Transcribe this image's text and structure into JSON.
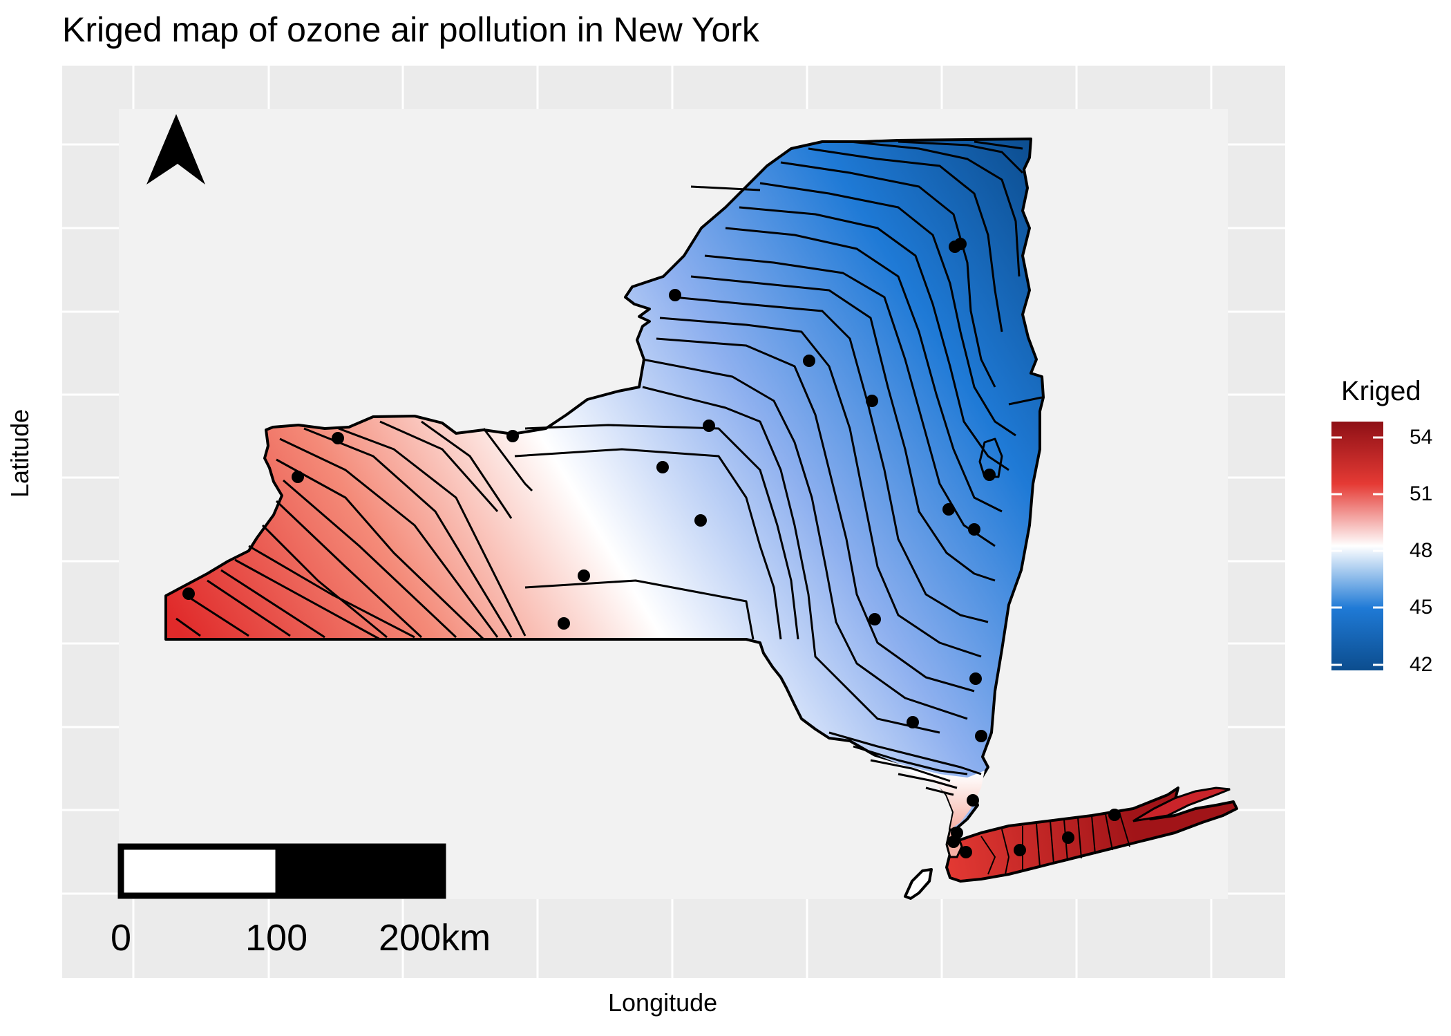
{
  "title": "Kriged map of ozone air pollution in New York",
  "xlabel": "Longitude",
  "ylabel": "Latitude",
  "legend": {
    "title": "Kriged",
    "ticks": [
      "54",
      "51",
      "48",
      "45",
      "42"
    ],
    "colors": {
      "high": "#8e1016",
      "mid_high": "#e23a33",
      "mid": "#ffffff",
      "mid_low": "#1f7ad6",
      "low": "#0c4d8e"
    }
  },
  "scale_bar": {
    "labels": [
      "0",
      "100",
      "200km"
    ]
  },
  "north_arrow": "north-arrow-icon",
  "colors": {
    "panel_bg": "#ebebeb",
    "map_bg": "#f2f2f2",
    "grid": "#ffffff"
  }
}
